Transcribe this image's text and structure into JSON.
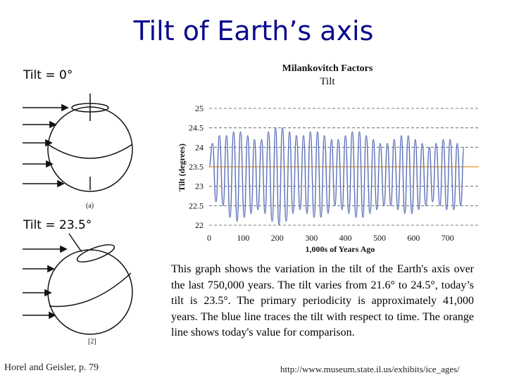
{
  "title": "Tilt of Earth’s axis",
  "left_panel": {
    "tilt0_label": "Tilt = 0°",
    "tilt235_label": "Tilt = 23.5°",
    "fig_a_label": "(a)",
    "fig_b_label": "[2]",
    "source": "Horel and Geisler, p. 79"
  },
  "caption": "This graph shows the variation in the tilt of the Earth's axis over the last 750,000 years. The tilt varies from 21.6° to 24.5°, today’s tilt is 23.5°. The primary periodicity is approximately 41,000 years. The blue line traces the tilt with respect to time. The orange line shows today's value for comparison.",
  "source_url": "http://www.museum.state.il.us/exhibits/ice_ages/",
  "colors": {
    "title": "#0a0a8c",
    "series": "#5a6fb8",
    "reference": "#e8a64a",
    "grid": "#555555"
  },
  "chart_data": {
    "type": "line",
    "title": "Milankovitch Factors",
    "subtitle": "Tilt",
    "xlabel": "1,000s of Years Ago",
    "ylabel": "Tilt (degrees)",
    "xlim": [
      0,
      750
    ],
    "ylim": [
      22,
      25
    ],
    "xticks": [
      0,
      100,
      200,
      300,
      400,
      500,
      600,
      700
    ],
    "yticks": [
      22,
      22.5,
      23,
      23.5,
      24,
      24.5,
      25
    ],
    "ytick_labels": [
      "22",
      "22.5",
      "23",
      "23.5",
      "24",
      "24.5",
      "25"
    ],
    "grid": "horizontal dashed",
    "series": [
      {
        "x": [
          0,
          10,
          20,
          30,
          41,
          51,
          61,
          72,
          82,
          92,
          103,
          113,
          123,
          133,
          143,
          154,
          164,
          174,
          185,
          195,
          205,
          215,
          226,
          236,
          246,
          256,
          267,
          277,
          287,
          297,
          308,
          318,
          328,
          338,
          349,
          359,
          369,
          379,
          390,
          400,
          410,
          420,
          431,
          441,
          451,
          461,
          472,
          482,
          492,
          502,
          513,
          523,
          533,
          543,
          554,
          564,
          574,
          584,
          595,
          605,
          615,
          625,
          636,
          646,
          656,
          666,
          677,
          687,
          697,
          707,
          718,
          728,
          738,
          748
        ],
        "values": [
          23.5,
          24.1,
          22.6,
          24.3,
          22.5,
          24.3,
          22.2,
          24.4,
          22.1,
          24.4,
          22.2,
          24.3,
          22.3,
          24.2,
          22.4,
          24.2,
          22.3,
          24.4,
          22.1,
          24.5,
          22.0,
          24.5,
          22.1,
          24.4,
          22.3,
          24.3,
          22.4,
          24.3,
          22.3,
          24.4,
          22.2,
          24.4,
          22.2,
          24.3,
          22.3,
          24.2,
          22.5,
          24.2,
          22.4,
          24.3,
          22.3,
          24.4,
          22.2,
          24.4,
          22.2,
          24.3,
          22.3,
          24.2,
          22.4,
          24.1,
          22.5,
          24.1,
          22.5,
          24.2,
          22.4,
          24.3,
          22.3,
          24.3,
          22.3,
          24.2,
          22.4,
          24.1,
          22.5,
          24.0,
          22.6,
          24.1,
          22.5,
          24.2,
          22.4,
          24.2,
          22.4,
          24.1,
          22.5,
          24.0
        ]
      }
    ],
    "reference_line": 23.5
  }
}
